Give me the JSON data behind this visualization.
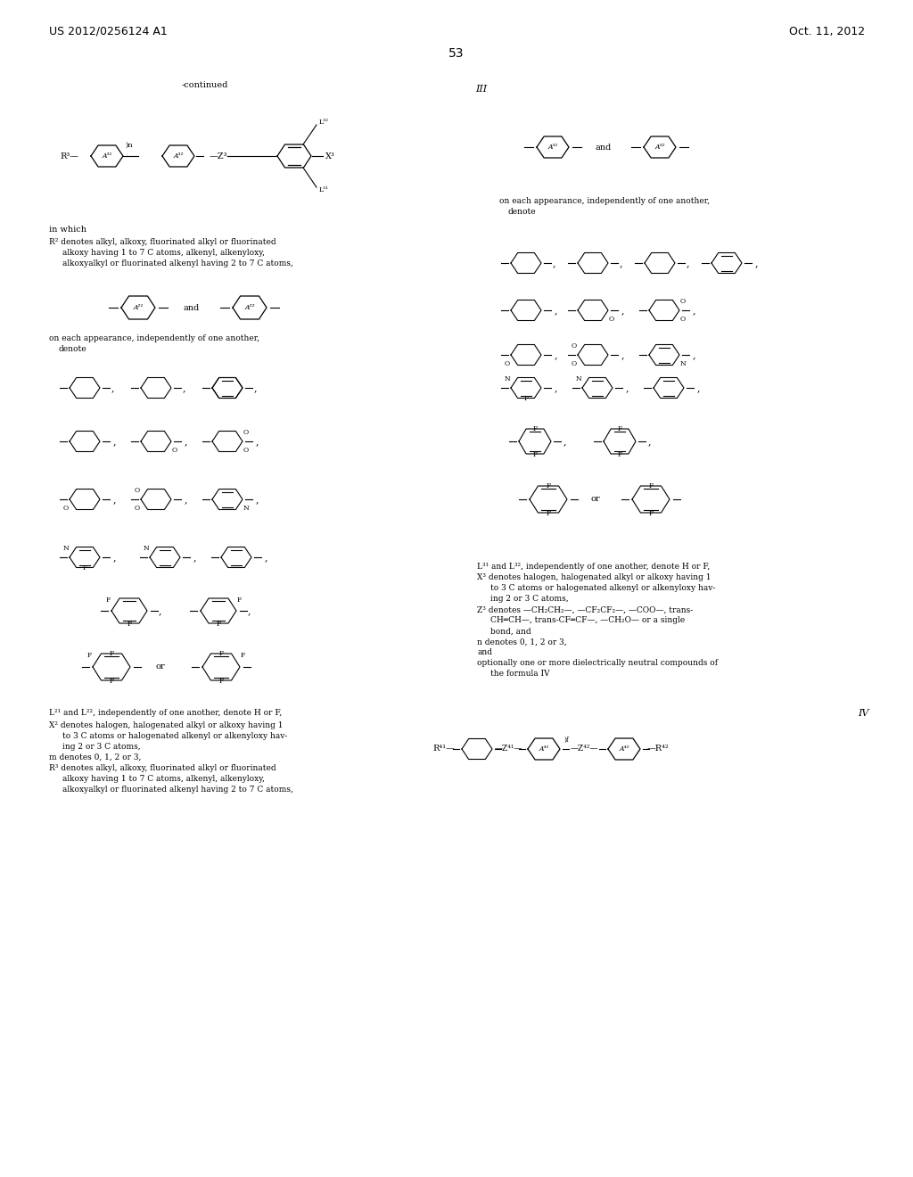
{
  "header_left": "US 2012/0256124 A1",
  "header_right": "Oct. 11, 2012",
  "page_number": "53",
  "background_color": "#ffffff",
  "text_color": "#000000",
  "font_size_header": 9,
  "font_size_body": 7,
  "font_size_label": 7
}
